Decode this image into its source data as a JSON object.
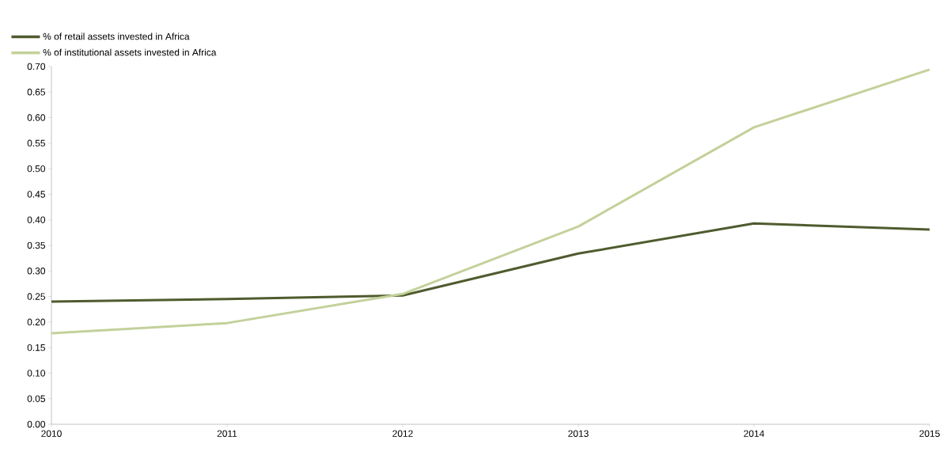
{
  "chart_data": {
    "type": "line",
    "x": [
      2010,
      2011,
      2012,
      2013,
      2014,
      2015
    ],
    "series": [
      {
        "name": "% of retail assets invested in Africa",
        "color": "#4f5b2e",
        "values": [
          0.24,
          0.245,
          0.252,
          0.334,
          0.393,
          0.381
        ]
      },
      {
        "name": "% of institutional assets invested in Africa",
        "color": "#c3d19a",
        "values": [
          0.178,
          0.198,
          0.255,
          0.387,
          0.581,
          0.694
        ]
      }
    ],
    "xlim": [
      2010,
      2015
    ],
    "xticks": [
      2010,
      2011,
      2012,
      2013,
      2014,
      2015
    ],
    "ylim": [
      0,
      0.7
    ],
    "yticks": [
      {
        "value": 0,
        "label": "0.00"
      },
      {
        "value": 0.05,
        "label": "0.05"
      },
      {
        "value": 0.1,
        "label": "0.10"
      },
      {
        "value": 0.15,
        "label": "0.15"
      },
      {
        "value": 0.2,
        "label": "0.20"
      },
      {
        "value": 0.25,
        "label": "0.25"
      },
      {
        "value": 0.3,
        "label": "0.30"
      },
      {
        "value": 0.35,
        "label": "0.35"
      },
      {
        "value": 0.4,
        "label": "0.40"
      },
      {
        "value": 0.45,
        "label": "0.45"
      },
      {
        "value": 0.5,
        "label": "0.50"
      },
      {
        "value": 0.55,
        "label": "0.55"
      },
      {
        "value": 0.6,
        "label": "0.60"
      },
      {
        "value": 0.65,
        "label": "0.65"
      },
      {
        "value": 0.7,
        "label": "0.70"
      }
    ],
    "grid": false,
    "legend": "top left",
    "marker": "none",
    "line_style": "solid"
  }
}
